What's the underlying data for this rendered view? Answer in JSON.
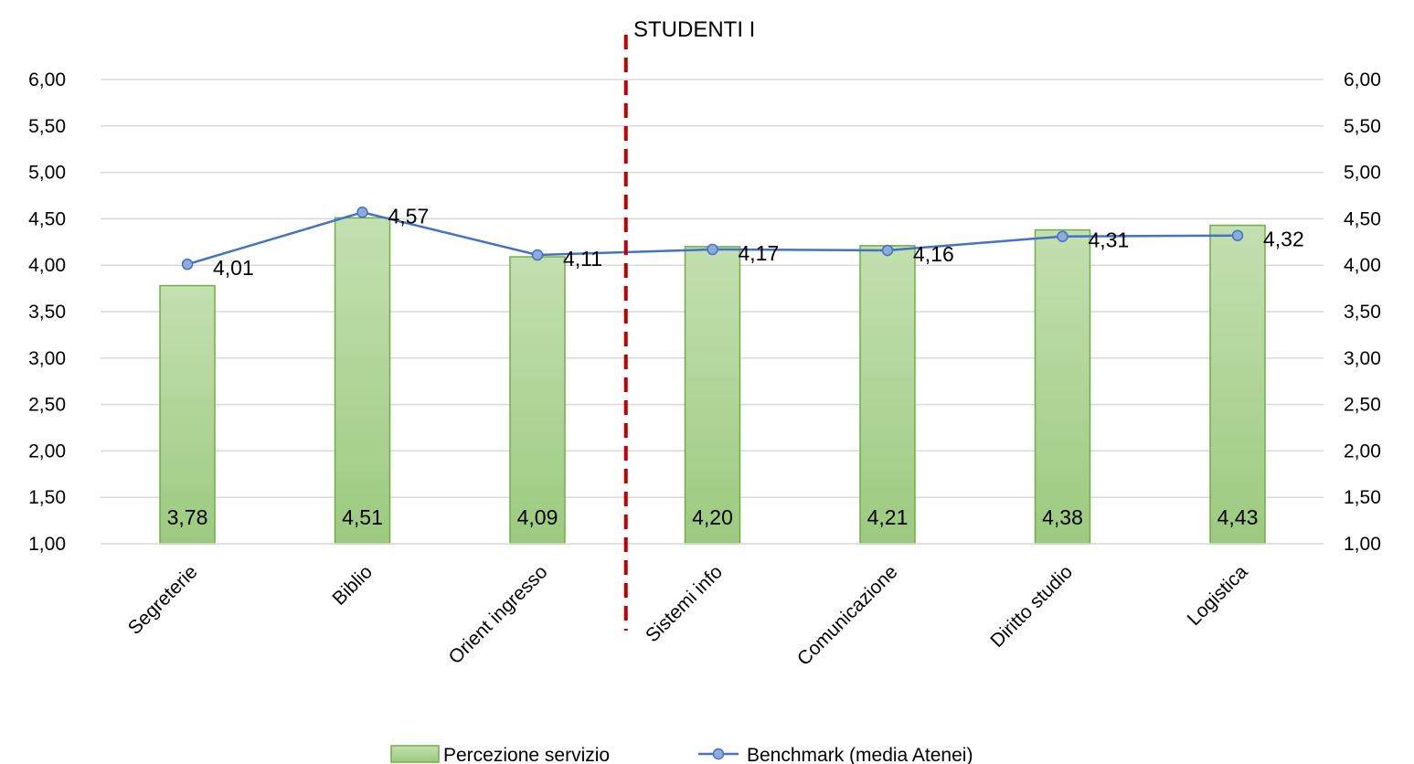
{
  "chart_data": {
    "type": "bar",
    "title": "STUDENTI I",
    "categories": [
      "Segreterie",
      "Biblio",
      "Orient ingresso",
      "Sistemi info",
      "Comunicazione",
      "Diritto studio",
      "Logistica"
    ],
    "series": [
      {
        "name": "Percezione servizio",
        "type": "bar",
        "values": [
          3.78,
          4.51,
          4.09,
          4.2,
          4.21,
          4.38,
          4.43
        ],
        "labels": [
          "3,78",
          "4,51",
          "4,09",
          "4,20",
          "4,21",
          "4,38",
          "4,43"
        ],
        "color": "#a9d18e"
      },
      {
        "name": "Benchmark (media Atenei)",
        "type": "line",
        "values": [
          4.01,
          4.57,
          4.11,
          4.17,
          4.16,
          4.31,
          4.32
        ],
        "labels": [
          "4,01",
          "4,57",
          "4,11",
          "4,17",
          "4,16",
          "4,31",
          "4,32"
        ],
        "color": "#4472c4",
        "marker_color": "#8faadc"
      }
    ],
    "ylim": [
      1.0,
      6.0
    ],
    "yticks": [
      1.0,
      1.5,
      2.0,
      2.5,
      3.0,
      3.5,
      4.0,
      4.5,
      5.0,
      5.5,
      6.0
    ],
    "ytick_labels": [
      "1,00",
      "1,50",
      "2,00",
      "2,50",
      "3,00",
      "3,50",
      "4,00",
      "4,50",
      "5,00",
      "5,50",
      "6,00"
    ],
    "secondary_axis": true,
    "grid": true,
    "legend_position": "bottom",
    "divider": {
      "after_category_index": 2,
      "color": "#c00000",
      "style": "dashed"
    }
  }
}
